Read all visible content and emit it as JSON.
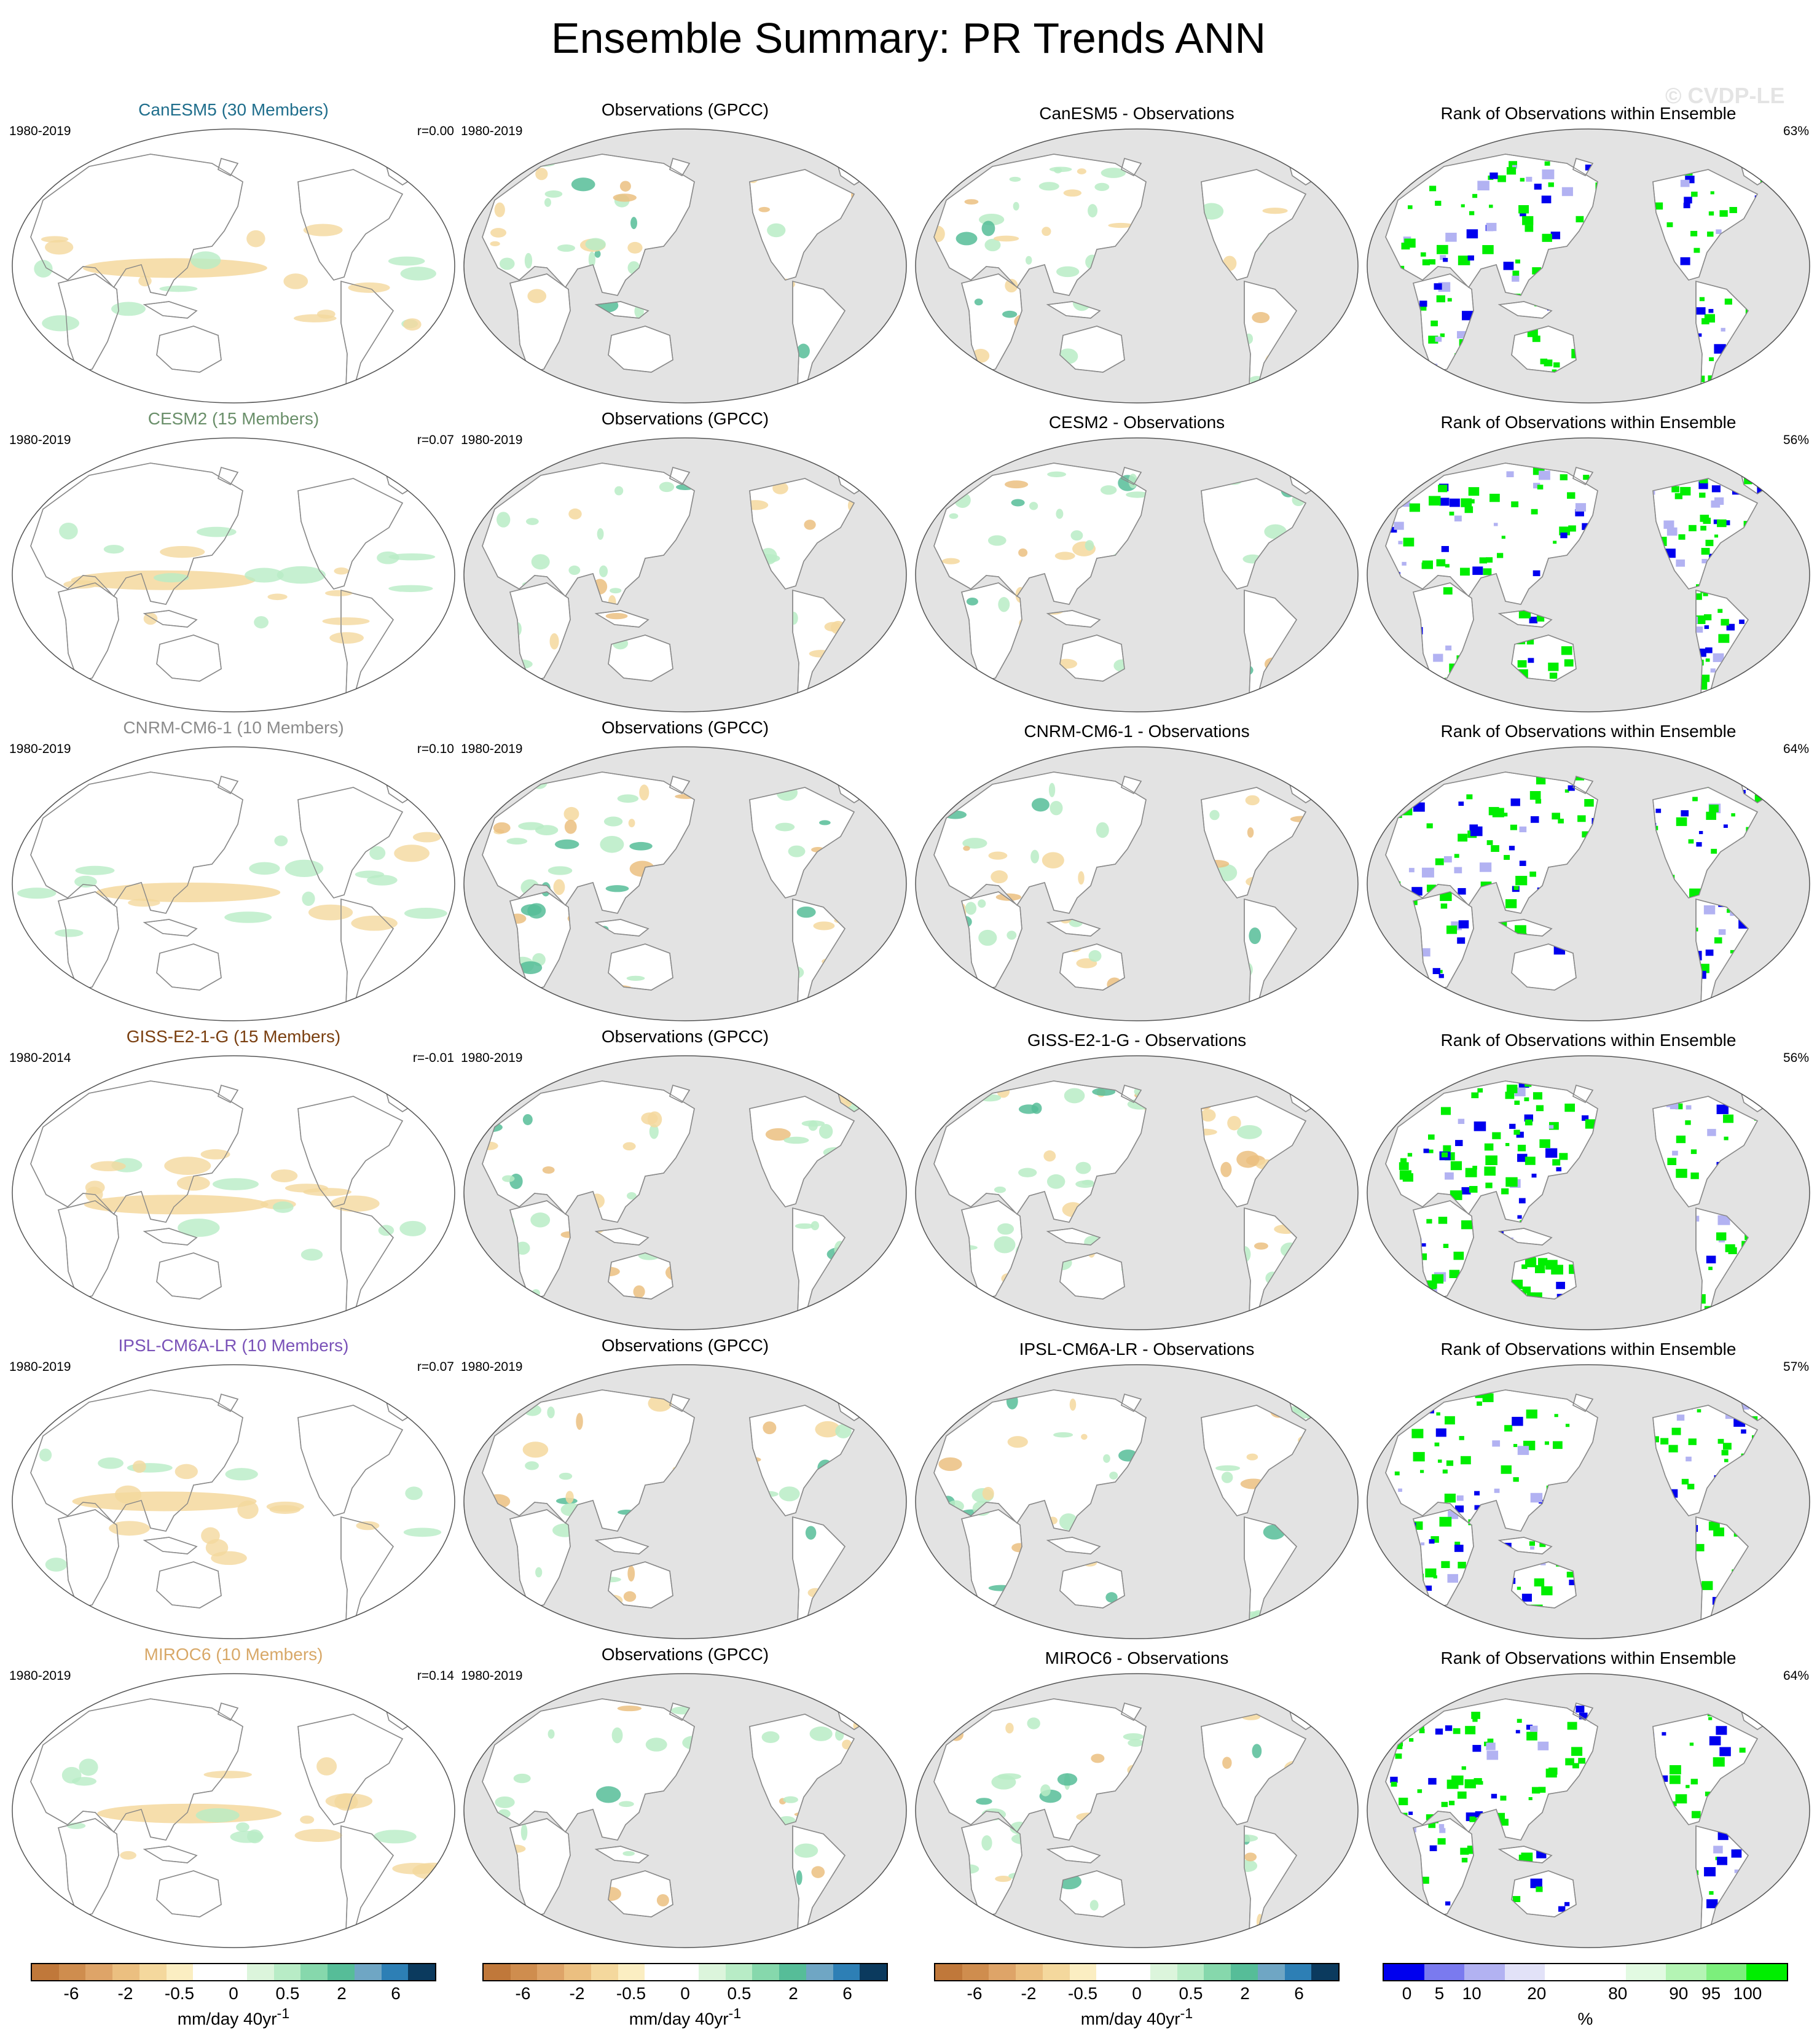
{
  "title": "Ensemble Summary: PR Trends ANN",
  "watermark": "© CVDP-LE",
  "colors": {
    "land": "#e3e3e3",
    "ocean_model": "#ffffff",
    "coast": "#8a8a8a",
    "dry": [
      "#c0783a",
      "#cf8d4e",
      "#dea468",
      "#ebbf80",
      "#f4d89d",
      "#fbeec2"
    ],
    "wet": [
      "#dcf5dc",
      "#b8ecc6",
      "#86d8ac",
      "#56bd98",
      "#6fa6c4",
      "#2d7fb5",
      "#0e5e9a",
      "#0b3a5e"
    ],
    "rank": [
      "#0000ee",
      "#7a7aef",
      "#b2b2f2",
      "#e2e2f8",
      "#ffffff",
      "#ffffff",
      "#e2fae2",
      "#b4f4b4",
      "#7cef7c",
      "#00ee00"
    ]
  },
  "rows": [
    {
      "model": "CanESM5 (30 Members)",
      "model_color": "#1f6e8c",
      "period": "1980-2019",
      "r": "r=0.00",
      "obs_title": "Observations (GPCC)",
      "obs_period": "1980-2019",
      "diff_title": "CanESM5 - Observations",
      "rank_title": "Rank of Observations within Ensemble",
      "rank_pct": "63%"
    },
    {
      "model": "CESM2 (15 Members)",
      "model_color": "#6a8f6a",
      "period": "1980-2019",
      "r": "r=0.07",
      "obs_title": "Observations (GPCC)",
      "obs_period": "1980-2019",
      "diff_title": "CESM2 - Observations",
      "rank_title": "Rank of Observations within Ensemble",
      "rank_pct": "56%"
    },
    {
      "model": "CNRM-CM6-1 (10 Members)",
      "model_color": "#8c8c8c",
      "period": "1980-2019",
      "r": "r=0.10",
      "obs_title": "Observations (GPCC)",
      "obs_period": "1980-2019",
      "diff_title": "CNRM-CM6-1 - Observations",
      "rank_title": "Rank of Observations within Ensemble",
      "rank_pct": "64%"
    },
    {
      "model": "GISS-E2-1-G (15 Members)",
      "model_color": "#7a3f10",
      "period": "1980-2014",
      "r": "r=-0.01",
      "obs_title": "Observations (GPCC)",
      "obs_period": "1980-2019",
      "diff_title": "GISS-E2-1-G - Observations",
      "rank_title": "Rank of Observations within Ensemble",
      "rank_pct": "56%"
    },
    {
      "model": "IPSL-CM6A-LR (10 Members)",
      "model_color": "#7a52b8",
      "period": "1980-2019",
      "r": "r=0.07",
      "obs_title": "Observations (GPCC)",
      "obs_period": "1980-2019",
      "diff_title": "IPSL-CM6A-LR - Observations",
      "rank_title": "Rank of Observations within Ensemble",
      "rank_pct": "57%"
    },
    {
      "model": "MIROC6 (10 Members)",
      "model_color": "#d8a868",
      "period": "1980-2019",
      "r": "r=0.14",
      "obs_title": "Observations (GPCC)",
      "obs_period": "1980-2019",
      "diff_title": "MIROC6 - Observations",
      "rank_title": "Rank of Observations within Ensemble",
      "rank_pct": "64%"
    }
  ],
  "colorbars": [
    {
      "ticks": [
        "-6",
        "-2",
        "-0.5",
        "0",
        "0.5",
        "2",
        "6"
      ],
      "unit": "mm/day 40yr",
      "unit_sup": "-1",
      "palette": "trend"
    },
    {
      "ticks": [
        "-6",
        "-2",
        "-0.5",
        "0",
        "0.5",
        "2",
        "6"
      ],
      "unit": "mm/day 40yr",
      "unit_sup": "-1",
      "palette": "trend"
    },
    {
      "ticks": [
        "-6",
        "-2",
        "-0.5",
        "0",
        "0.5",
        "2",
        "6"
      ],
      "unit": "mm/day 40yr",
      "unit_sup": "-1",
      "palette": "trend"
    },
    {
      "ticks": [
        "0",
        "5",
        "10",
        "20",
        "80",
        "90",
        "95",
        "100"
      ],
      "unit": "%",
      "unit_sup": "",
      "palette": "rank"
    }
  ],
  "chart_data": {
    "type": "heatmap",
    "title": "Ensemble Summary: PR Trends ANN",
    "projection": "Robinson, Pacific-centered",
    "panels_per_row": [
      "ensemble mean trend",
      "observations (GPCC) trend",
      "model minus observations",
      "rank of observations within ensemble"
    ],
    "trend_levels": [
      -6,
      -4,
      -2,
      -1,
      -0.5,
      -0.25,
      0,
      0.25,
      0.5,
      1,
      2,
      4,
      6
    ],
    "rank_levels": [
      0,
      5,
      10,
      20,
      80,
      90,
      95,
      100
    ],
    "pattern_correlation": {
      "CanESM5": 0.0,
      "CESM2": 0.07,
      "CNRM-CM6-1": 0.1,
      "GISS-E2-1-G": -0.01,
      "IPSL-CM6A-LR": 0.07,
      "MIROC6": 0.14
    },
    "rank_area_percent": {
      "CanESM5": 63,
      "CESM2": 56,
      "CNRM-CM6-1": 64,
      "GISS-E2-1-G": 56,
      "IPSL-CM6A-LR": 57,
      "MIROC6": 64
    }
  }
}
